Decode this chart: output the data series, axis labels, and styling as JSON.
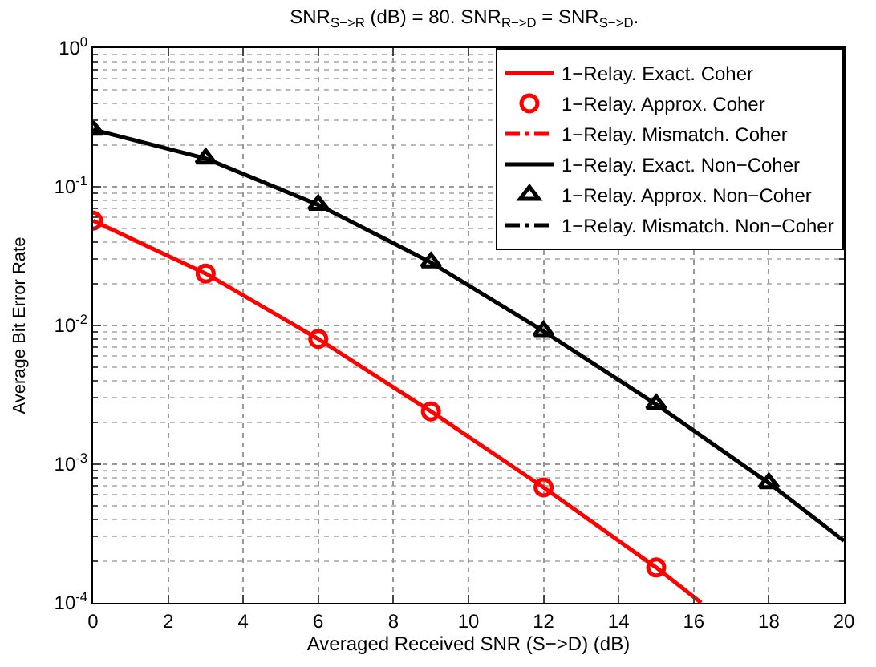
{
  "chart_data": {
    "type": "line",
    "title": "SNR$_{S−>R}$ (dB) = 80. SNR$_{R−>D}$ = SNR$_{S−>D}$.",
    "xlabel": "Averaged Received SNR (S−>D) (dB)",
    "ylabel": "Average Bit Error Rate",
    "log": "y",
    "xlim": [
      0,
      20
    ],
    "xticks": [
      0,
      2,
      4,
      6,
      8,
      10,
      12,
      14,
      16,
      18,
      20
    ],
    "ylim": [
      0.0001,
      1
    ],
    "yticks": [
      {
        "value": 0.0001,
        "label": "10$^{-4}$"
      },
      {
        "value": 0.001,
        "label": "10$^{-3}$"
      },
      {
        "value": 0.01,
        "label": "10$^{-2}$"
      },
      {
        "value": 0.1,
        "label": "10$^{-1}$"
      },
      {
        "value": 1,
        "label": "10$^{0}$"
      }
    ],
    "grid": true,
    "legend": "top right",
    "series": [
      {
        "name": "1−Relay. Exact. Coher",
        "color": "#ff0000",
        "line_style": "solid",
        "marker": "none",
        "x": [
          0,
          3,
          6,
          9,
          12,
          15,
          16.2
        ],
        "values": [
          0.057,
          0.0237,
          0.008,
          0.0024,
          0.00068,
          0.00018,
          0.0001
        ]
      },
      {
        "name": "1−Relay. Approx. Coher",
        "color": "#ff0000",
        "type": "scatter",
        "marker": "circle",
        "x": [
          0,
          3,
          6,
          9,
          12,
          15
        ],
        "values": [
          0.057,
          0.0237,
          0.008,
          0.0024,
          0.00068,
          0.00018
        ]
      },
      {
        "name": "1−Relay. Mismatch. Coher",
        "color": "#ff0000",
        "line_style": "dashdot",
        "marker": "none"
      },
      {
        "name": "1−Relay. Exact. Non−Coher",
        "color": "#000000",
        "line_style": "solid",
        "marker": "none",
        "x": [
          0,
          3,
          6,
          9,
          12,
          15,
          18,
          20
        ],
        "values": [
          0.258,
          0.16,
          0.074,
          0.0285,
          0.0091,
          0.0027,
          0.00073,
          0.00028
        ]
      },
      {
        "name": "1−Relay. Approx. Non−Coher",
        "color": "#000000",
        "type": "scatter",
        "marker": "triangle",
        "x": [
          0,
          3,
          6,
          9,
          12,
          15,
          18
        ],
        "values": [
          0.258,
          0.16,
          0.074,
          0.0285,
          0.0091,
          0.0027,
          0.00073
        ]
      },
      {
        "name": "1−Relay. Mismatch. Non−Coher",
        "color": "#000000",
        "line_style": "dashdot",
        "marker": "none"
      }
    ]
  }
}
